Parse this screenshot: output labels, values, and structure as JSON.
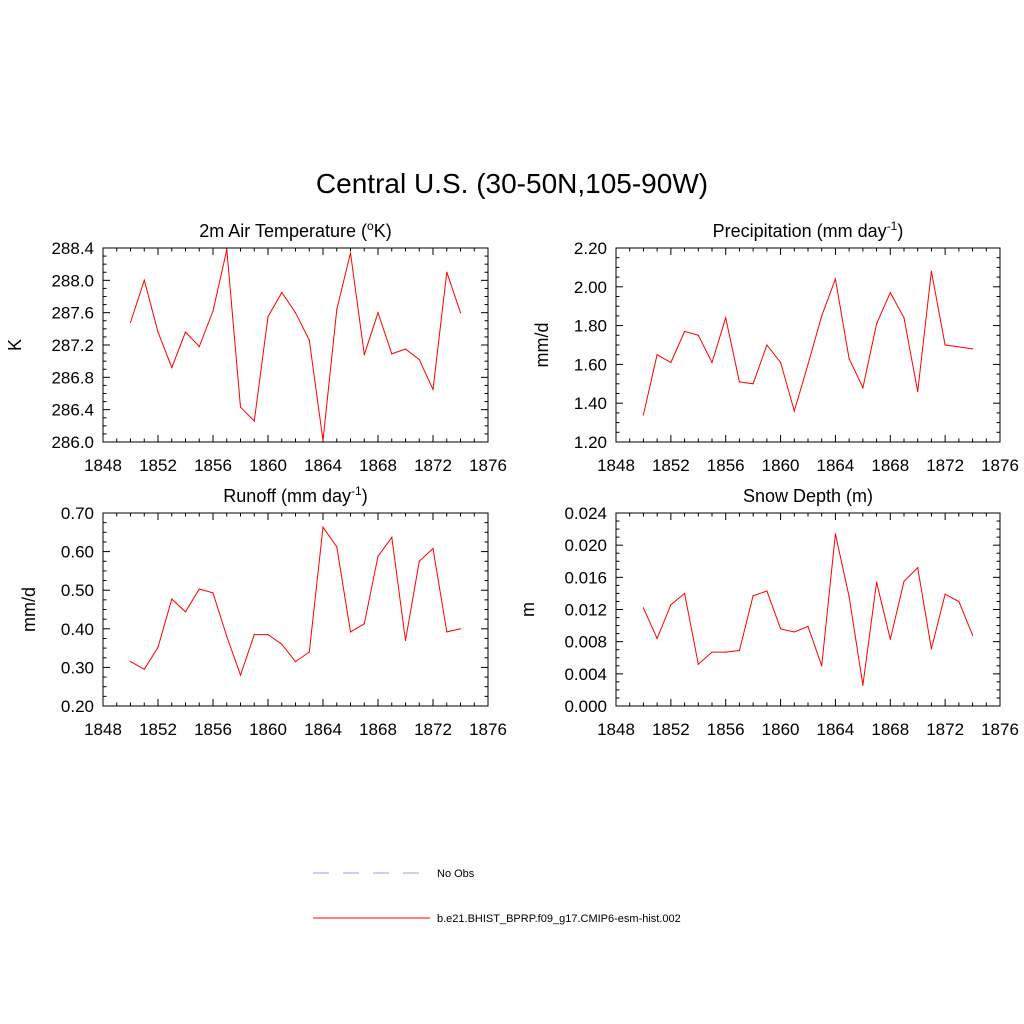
{
  "title": "Central U.S. (30-50N,105-90W)",
  "colors": {
    "model": "#ff0000",
    "obs": "#9999ff",
    "axis": "#000000"
  },
  "legend": [
    {
      "label": "No Obs",
      "style": "dashed",
      "color": "#9999ff"
    },
    {
      "label": "b.e21.BHIST_BPRP.f09_g17.CMIP6-esm-hist.002",
      "style": "solid",
      "color": "#ff0000"
    }
  ],
  "chart_data": [
    {
      "type": "line",
      "title": "2m Air Temperature (",
      "title_sup": "o",
      "title_tail": "K)",
      "ylabel": "K",
      "xlim": [
        1848,
        1876
      ],
      "ylim": [
        286.0,
        288.4
      ],
      "xticks": [
        "1848",
        "1852",
        "1856",
        "1860",
        "1864",
        "1868",
        "1872",
        "1876"
      ],
      "yticks": [
        "286.0",
        "286.4",
        "286.8",
        "287.2",
        "287.6",
        "288.0",
        "288.4"
      ],
      "x": [
        1850,
        1851,
        1852,
        1853,
        1854,
        1855,
        1856,
        1857,
        1858,
        1859,
        1860,
        1861,
        1862,
        1863,
        1864,
        1865,
        1866,
        1867,
        1868,
        1869,
        1870,
        1871,
        1872,
        1873,
        1874
      ],
      "series": [
        {
          "values": [
            287.48,
            288.0,
            287.36,
            286.92,
            287.36,
            287.18,
            287.62,
            288.38,
            286.43,
            286.26,
            287.55,
            287.85,
            287.6,
            287.26,
            286.02,
            287.64,
            288.34,
            287.08,
            287.6,
            287.09,
            287.15,
            287.02,
            286.65,
            288.1,
            287.6
          ]
        }
      ]
    },
    {
      "type": "line",
      "title": "Precipitation (mm day",
      "title_sup": "-1",
      "title_tail": ")",
      "ylabel": "mm/d",
      "xlim": [
        1848,
        1876
      ],
      "ylim": [
        1.2,
        2.2
      ],
      "xticks": [
        "1848",
        "1852",
        "1856",
        "1860",
        "1864",
        "1868",
        "1872",
        "1876"
      ],
      "yticks": [
        "1.20",
        "1.40",
        "1.60",
        "1.80",
        "2.00",
        "2.20"
      ],
      "x": [
        1850,
        1851,
        1852,
        1853,
        1854,
        1855,
        1856,
        1857,
        1858,
        1859,
        1860,
        1861,
        1862,
        1863,
        1864,
        1865,
        1866,
        1867,
        1868,
        1869,
        1870,
        1871,
        1872,
        1873,
        1874
      ],
      "series": [
        {
          "values": [
            1.34,
            1.65,
            1.61,
            1.77,
            1.75,
            1.61,
            1.84,
            1.51,
            1.5,
            1.7,
            1.61,
            1.36,
            1.6,
            1.85,
            2.04,
            1.63,
            1.48,
            1.81,
            1.97,
            1.84,
            1.46,
            2.08,
            1.7,
            1.69,
            1.68
          ]
        }
      ]
    },
    {
      "type": "line",
      "title": "Runoff (mm day",
      "title_sup": "-1",
      "title_tail": ")",
      "ylabel": "mm/d",
      "xlim": [
        1848,
        1876
      ],
      "ylim": [
        0.2,
        0.7
      ],
      "xticks": [
        "1848",
        "1852",
        "1856",
        "1860",
        "1864",
        "1868",
        "1872",
        "1876"
      ],
      "yticks": [
        "0.20",
        "0.30",
        "0.40",
        "0.50",
        "0.60",
        "0.70"
      ],
      "x": [
        1850,
        1851,
        1852,
        1853,
        1854,
        1855,
        1856,
        1857,
        1858,
        1859,
        1860,
        1861,
        1862,
        1863,
        1864,
        1865,
        1866,
        1867,
        1868,
        1869,
        1870,
        1871,
        1872,
        1873,
        1874
      ],
      "series": [
        {
          "values": [
            0.315,
            0.295,
            0.352,
            0.477,
            0.444,
            0.503,
            0.493,
            0.38,
            0.28,
            0.385,
            0.385,
            0.36,
            0.315,
            0.34,
            0.663,
            0.612,
            0.392,
            0.413,
            0.588,
            0.637,
            0.37,
            0.575,
            0.608,
            0.392,
            0.4
          ]
        }
      ]
    },
    {
      "type": "line",
      "title": "Snow Depth (m)",
      "title_sup": "",
      "title_tail": "",
      "ylabel": "m",
      "xlim": [
        1848,
        1876
      ],
      "ylim": [
        0.0,
        0.024
      ],
      "xticks": [
        "1848",
        "1852",
        "1856",
        "1860",
        "1864",
        "1868",
        "1872",
        "1876"
      ],
      "yticks": [
        "0.000",
        "0.004",
        "0.008",
        "0.012",
        "0.016",
        "0.020",
        "0.024"
      ],
      "x": [
        1850,
        1851,
        1852,
        1853,
        1854,
        1855,
        1856,
        1857,
        1858,
        1859,
        1860,
        1861,
        1862,
        1863,
        1864,
        1865,
        1866,
        1867,
        1868,
        1869,
        1870,
        1871,
        1872,
        1873,
        1874
      ],
      "series": [
        {
          "values": [
            0.0122,
            0.0084,
            0.0126,
            0.014,
            0.0052,
            0.0067,
            0.0067,
            0.0069,
            0.0137,
            0.0143,
            0.0096,
            0.0092,
            0.0099,
            0.005,
            0.0214,
            0.0136,
            0.0026,
            0.0154,
            0.0083,
            0.0155,
            0.0172,
            0.0071,
            0.0139,
            0.013,
            0.0088
          ]
        }
      ]
    }
  ]
}
